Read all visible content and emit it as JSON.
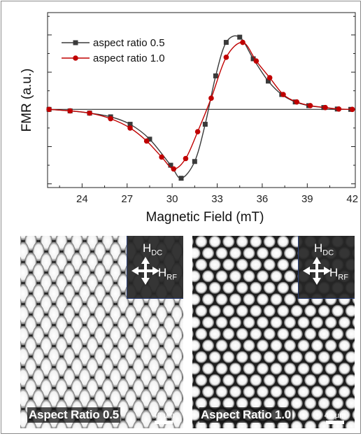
{
  "chart_data": {
    "type": "line",
    "title": "",
    "xlabel": "Magnetic Field (mT)",
    "ylabel": "FMR (a.u.)",
    "xlim": [
      21.7,
      42.2
    ],
    "ylim": [
      -2.1,
      2.6
    ],
    "xticks": [
      24,
      27,
      30,
      33,
      36,
      39,
      42
    ],
    "baseline": 0,
    "grid": false,
    "legend_position": "top-left",
    "series": [
      {
        "name": "aspect ratio 0.5",
        "color": "#3a3a3a",
        "marker": "square",
        "x": [
          21.8,
          23.2,
          24.5,
          25.9,
          27.2,
          28.5,
          29.9,
          30.6,
          31.5,
          32.2,
          32.9,
          33.6,
          34.5,
          35.4,
          36.4,
          37.3,
          38.2,
          39.1,
          40.1,
          41.0,
          41.9
        ],
        "y": [
          0.0,
          -0.04,
          -0.1,
          -0.2,
          -0.4,
          -0.8,
          -1.5,
          -1.85,
          -1.4,
          -0.4,
          0.9,
          1.8,
          1.94,
          1.36,
          0.76,
          0.4,
          0.2,
          0.1,
          0.05,
          0.01,
          0.0
        ]
      },
      {
        "name": "aspect ratio 1.0",
        "color": "#c00000",
        "marker": "circle",
        "x": [
          21.8,
          23.2,
          24.5,
          25.9,
          27.2,
          28.3,
          29.3,
          30.1,
          30.9,
          31.7,
          32.6,
          33.6,
          34.7,
          35.6,
          36.5,
          37.4,
          38.3,
          39.2,
          40.2,
          41.1,
          42.0
        ],
        "y": [
          0.0,
          -0.04,
          -0.1,
          -0.25,
          -0.5,
          -0.85,
          -1.28,
          -1.6,
          -1.32,
          -0.6,
          0.3,
          1.4,
          1.8,
          1.3,
          0.85,
          0.4,
          0.2,
          0.1,
          0.05,
          0.01,
          0.0
        ]
      }
    ]
  },
  "panels": [
    {
      "label": "Aspect Ratio 0.5",
      "h_dc": "H",
      "h_dc_sub": "DC",
      "h_rf": "H",
      "h_rf_sub": "RF",
      "scale": "40 µm"
    },
    {
      "label": "Aspect Ratio 1.0",
      "h_dc": "H",
      "h_dc_sub": "DC",
      "h_rf": "H",
      "h_rf_sub": "RF",
      "scale": "40 µm"
    }
  ]
}
